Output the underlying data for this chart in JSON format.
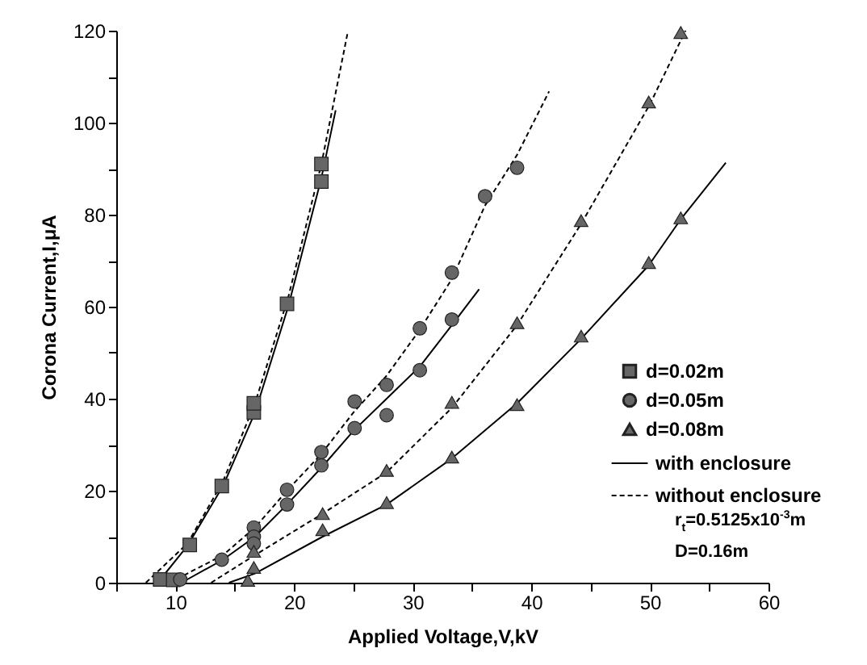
{
  "chart_data": {
    "type": "scatter",
    "xlabel": "Applied Voltage,V,kV",
    "ylabel": "Corona Current,I,μA",
    "xlim": [
      5,
      60
    ],
    "ylim": [
      0,
      120
    ],
    "xticks": [
      {
        "value": 5,
        "label": null
      },
      10,
      {
        "value": 15,
        "label": null
      },
      20,
      {
        "value": 25,
        "label": null
      },
      30,
      {
        "value": 35,
        "label": null
      },
      40,
      {
        "value": 45,
        "label": null
      },
      50,
      {
        "value": 55,
        "label": null
      },
      60
    ],
    "yticks": [
      0,
      {
        "value": 10,
        "label": null
      },
      20,
      {
        "value": 30,
        "label": null
      },
      40,
      {
        "value": 50,
        "label": null
      },
      60,
      {
        "value": 70,
        "label": null
      },
      80,
      {
        "value": 90,
        "label": null
      },
      100,
      {
        "value": 110,
        "label": null
      },
      120
    ],
    "grid": false,
    "legend": "bottom right",
    "annotations": [
      "r$_{t}$=0.5125x10$^{-3}$m",
      "D=0.16m"
    ],
    "series": [
      {
        "name": "d=0.02m",
        "marker": "square",
        "color": "#666666",
        "x": [
          8.7,
          9.8,
          11.2,
          13.9,
          16.6,
          16.6,
          19.4,
          22.3,
          22.3
        ],
        "values": [
          0.7,
          0.6,
          8.2,
          21,
          37,
          39,
          60.6,
          87.2,
          91
        ]
      },
      {
        "name": "d=0.05m",
        "marker": "circle",
        "color": "#666666",
        "x": [
          10.4,
          13.9,
          16.6,
          16.6,
          16.6,
          19.4,
          19.4,
          22.3,
          22.3,
          25.1,
          25.1,
          27.8,
          27.8,
          30.6,
          30.6,
          33.3,
          33.3,
          36.1,
          38.8
        ],
        "values": [
          0.7,
          5,
          12,
          10,
          8.5,
          20.2,
          17,
          28.4,
          25.5,
          39.4,
          33.6,
          43,
          36.4,
          55.3,
          46.2,
          67.4,
          57.2,
          84,
          90.2
        ]
      },
      {
        "name": "d=0.08m",
        "marker": "triangle",
        "color": "#666666",
        "x": [
          16.1,
          16.6,
          16.6,
          22.4,
          22.4,
          27.8,
          27.8,
          33.3,
          33.3,
          38.8,
          38.8,
          44.2,
          44.2,
          49.9,
          49.9,
          52.6,
          52.6
        ],
        "values": [
          0.5,
          3.3,
          6.8,
          11.5,
          15,
          17.4,
          24.4,
          27.3,
          39.2,
          38.7,
          56.5,
          53.6,
          78.7,
          69.6,
          104.5,
          79.3,
          119.6
        ]
      },
      {
        "name": "with enclosure",
        "type": "line",
        "line_style": "solid",
        "color": "#000000",
        "x": [
          8.5,
          11,
          14,
          16.7,
          19.5,
          22.3,
          23.5
        ],
        "values": [
          0,
          8,
          21,
          37,
          60,
          88,
          102.7
        ]
      },
      {
        "type": "line",
        "line_style": "dashed",
        "color": "#000000",
        "x": [
          7.5,
          11,
          14,
          16.7,
          19.5,
          22.3,
          24.5
        ],
        "values": [
          0,
          8.5,
          22,
          39,
          62,
          91,
          119.4
        ]
      },
      {
        "type": "line",
        "line_style": "solid",
        "color": "#000000",
        "x": [
          10.5,
          14,
          16.7,
          19.4,
          22.3,
          25,
          27.8,
          30.6,
          33.3,
          35.6
        ],
        "values": [
          0,
          5,
          10,
          17,
          25,
          33,
          40,
          47,
          56,
          63.8
        ]
      },
      {
        "name": "without enclosure",
        "type": "line",
        "line_style": "dashed",
        "color": "#000000",
        "x": [
          9.5,
          14,
          16.7,
          19.4,
          22.3,
          25,
          27.8,
          30.6,
          33.3,
          36.1,
          38.8,
          41.5
        ],
        "values": [
          0,
          6,
          12,
          20,
          28,
          37,
          45,
          55,
          66,
          82,
          93,
          106.8
        ]
      },
      {
        "type": "line",
        "line_style": "solid",
        "color": "#000000",
        "x": [
          14.5,
          16.7,
          22.4,
          27.8,
          33.3,
          38.8,
          44.2,
          49.9,
          52.6,
          56.4
        ],
        "values": [
          0,
          2,
          10,
          17,
          27,
          39,
          53,
          69,
          79,
          91.3
        ]
      },
      {
        "type": "line",
        "line_style": "dashed",
        "color": "#000000",
        "x": [
          13,
          16.7,
          22.4,
          27.8,
          33.3,
          38.8,
          44.2,
          50,
          53
        ],
        "values": [
          0,
          6,
          15,
          24,
          38,
          56,
          78,
          104,
          120
        ]
      }
    ]
  }
}
